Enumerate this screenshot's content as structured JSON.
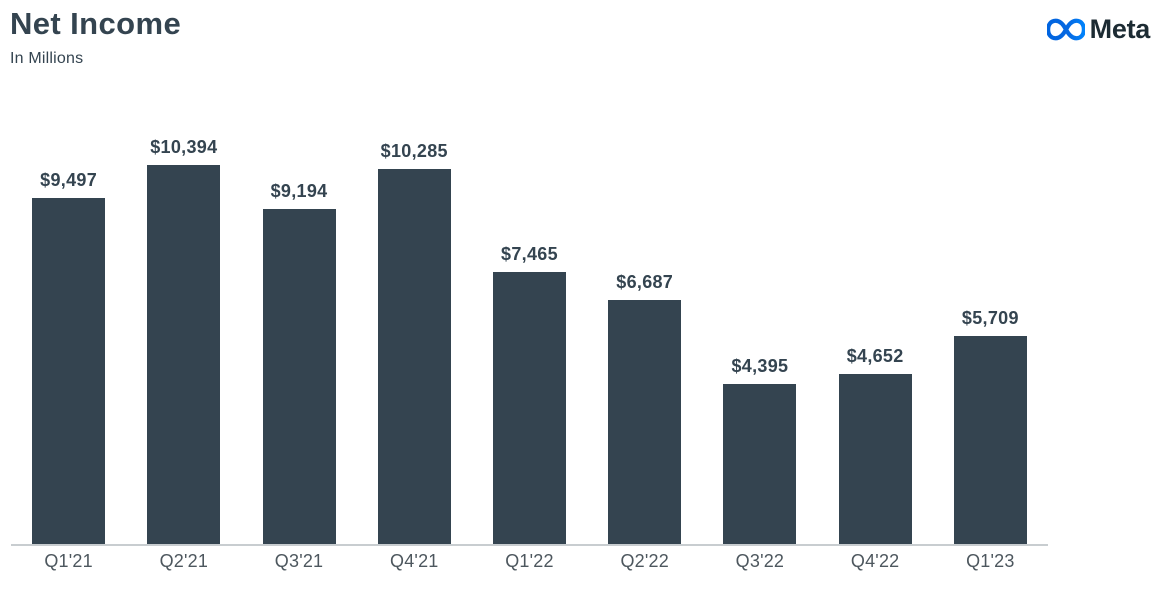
{
  "header": {
    "title": "Net Income",
    "subtitle": "In Millions"
  },
  "brand": {
    "wordmark": "Meta",
    "logo_icon": "meta-infinity-icon",
    "logo_gradient_start": "#0064E0",
    "logo_gradient_end": "#0082FB",
    "wordmark_color": "#1C2B33"
  },
  "chart_data": {
    "type": "bar",
    "title": "Net Income",
    "subtitle": "In Millions",
    "categories": [
      "Q1'21",
      "Q2'21",
      "Q3'21",
      "Q4'21",
      "Q1'22",
      "Q2'22",
      "Q3'22",
      "Q4'22",
      "Q1'23"
    ],
    "values": [
      9497,
      10394,
      9194,
      10285,
      7465,
      6687,
      4395,
      4652,
      5709
    ],
    "value_labels": [
      "$9,497",
      "$10,394",
      "$9,194",
      "$10,285",
      "$7,465",
      "$6,687",
      "$4,395",
      "$4,652",
      "$5,709"
    ],
    "xlabel": "",
    "ylabel": "",
    "ylim": [
      0,
      12500
    ],
    "grid": false,
    "legend": false,
    "bar_color": "#344450",
    "value_label_color": "#344450",
    "axis_label_color": "#4D575E",
    "axis_line_color": "#C8CDD0",
    "background_color": "#FFFFFF"
  }
}
